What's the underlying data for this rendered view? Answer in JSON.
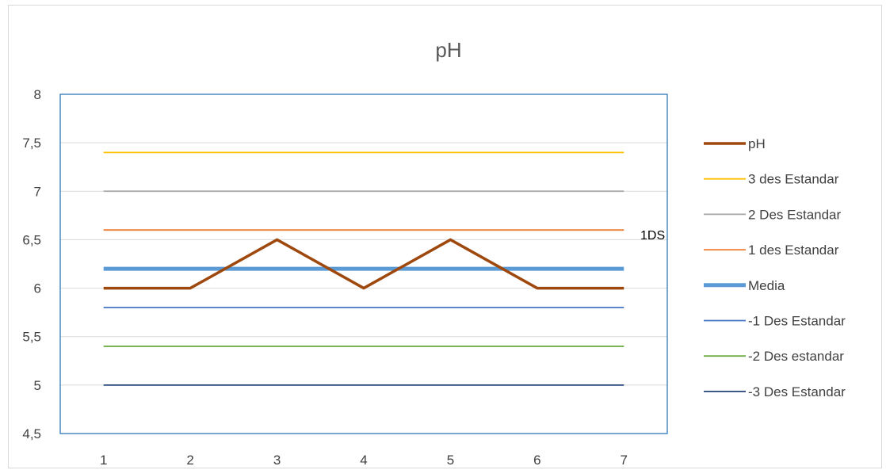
{
  "chart_data": {
    "type": "line",
    "title": "pH",
    "x": [
      1,
      2,
      3,
      4,
      5,
      6,
      7
    ],
    "x_tick_labels": [
      "1",
      "2",
      "3",
      "4",
      "5",
      "6",
      "7"
    ],
    "ylim": [
      4.5,
      8
    ],
    "y_ticks": [
      4.5,
      5,
      5.5,
      6,
      6.5,
      7,
      7.5,
      8
    ],
    "y_tick_labels": [
      "4,5",
      "5",
      "5,5",
      "6",
      "6,5",
      "7",
      "7,5",
      "8"
    ],
    "grid": true,
    "legend_position": "right",
    "series": [
      {
        "name": "pH",
        "values": [
          6,
          6,
          6.5,
          6,
          6.5,
          6,
          6
        ],
        "color": "#9e480e"
      },
      {
        "name": "3 des Estandar",
        "values": [
          7.4,
          7.4,
          7.4,
          7.4,
          7.4,
          7.4,
          7.4
        ],
        "color": "#ffc000"
      },
      {
        "name": "2 Des Estandar",
        "values": [
          7,
          7,
          7,
          7,
          7,
          7,
          7
        ],
        "color": "#a5a5a5"
      },
      {
        "name": "1 des Estandar",
        "values": [
          6.6,
          6.6,
          6.6,
          6.6,
          6.6,
          6.6,
          6.6
        ],
        "color": "#ed7d31"
      },
      {
        "name": "Media",
        "values": [
          6.2,
          6.2,
          6.2,
          6.2,
          6.2,
          6.2,
          6.2
        ],
        "color": "#5b9bd5"
      },
      {
        "name": "-1 Des Estandar",
        "values": [
          5.8,
          5.8,
          5.8,
          5.8,
          5.8,
          5.8,
          5.8
        ],
        "color": "#4472c4"
      },
      {
        "name": "-2 Des estandar",
        "values": [
          5.4,
          5.4,
          5.4,
          5.4,
          5.4,
          5.4,
          5.4
        ],
        "color": "#70ad47"
      },
      {
        "name": "-3 Des Estandar",
        "values": [
          5,
          5,
          5,
          5,
          5,
          5,
          5
        ],
        "color": "#264478"
      }
    ],
    "annotations": [
      {
        "text": "1DS",
        "x": 7,
        "y": 6.6
      }
    ]
  }
}
